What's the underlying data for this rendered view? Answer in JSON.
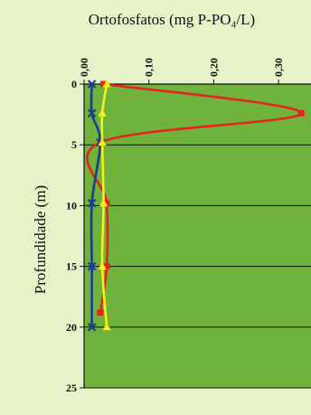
{
  "chart_data": {
    "type": "line",
    "title": "Ortofosfatos (mg P-PO₄/L)",
    "xlabel": "",
    "ylabel": "Profundidade (m)",
    "x_axis_position": "top",
    "y_axis_inverted": true,
    "xlim": [
      0,
      0.35
    ],
    "ylim": [
      0,
      25
    ],
    "x_ticks": [
      "0,00",
      "0,10",
      "0,20",
      "0,30"
    ],
    "x_tick_values": [
      0.0,
      0.1,
      0.2,
      0.3
    ],
    "y_ticks": [
      "0",
      "5",
      "10",
      "15",
      "20",
      "25"
    ],
    "y_tick_values": [
      0,
      5,
      10,
      15,
      20,
      25
    ],
    "grid": "horizontal",
    "plot_background": "#6fb23c",
    "series": [
      {
        "color": "#e8231c",
        "marker": "square",
        "points": [
          [
            0.03,
            0
          ],
          [
            0.335,
            2.4
          ],
          [
            0.025,
            4.8
          ],
          [
            0.035,
            9.8
          ],
          [
            0.035,
            15
          ],
          [
            0.025,
            18.8
          ]
        ]
      },
      {
        "color": "#1a3e8c",
        "marker": "x",
        "points": [
          [
            0.012,
            0
          ],
          [
            0.012,
            2.4
          ],
          [
            0.025,
            4.8
          ],
          [
            0.012,
            9.8
          ],
          [
            0.012,
            15
          ],
          [
            0.012,
            20
          ]
        ]
      },
      {
        "color": "#f7ef1a",
        "marker": "triangle",
        "points": [
          [
            0.035,
            0
          ],
          [
            0.028,
            2.4
          ],
          [
            0.028,
            4.8
          ],
          [
            0.03,
            9.8
          ],
          [
            0.028,
            15
          ],
          [
            0.035,
            20
          ]
        ]
      }
    ]
  }
}
